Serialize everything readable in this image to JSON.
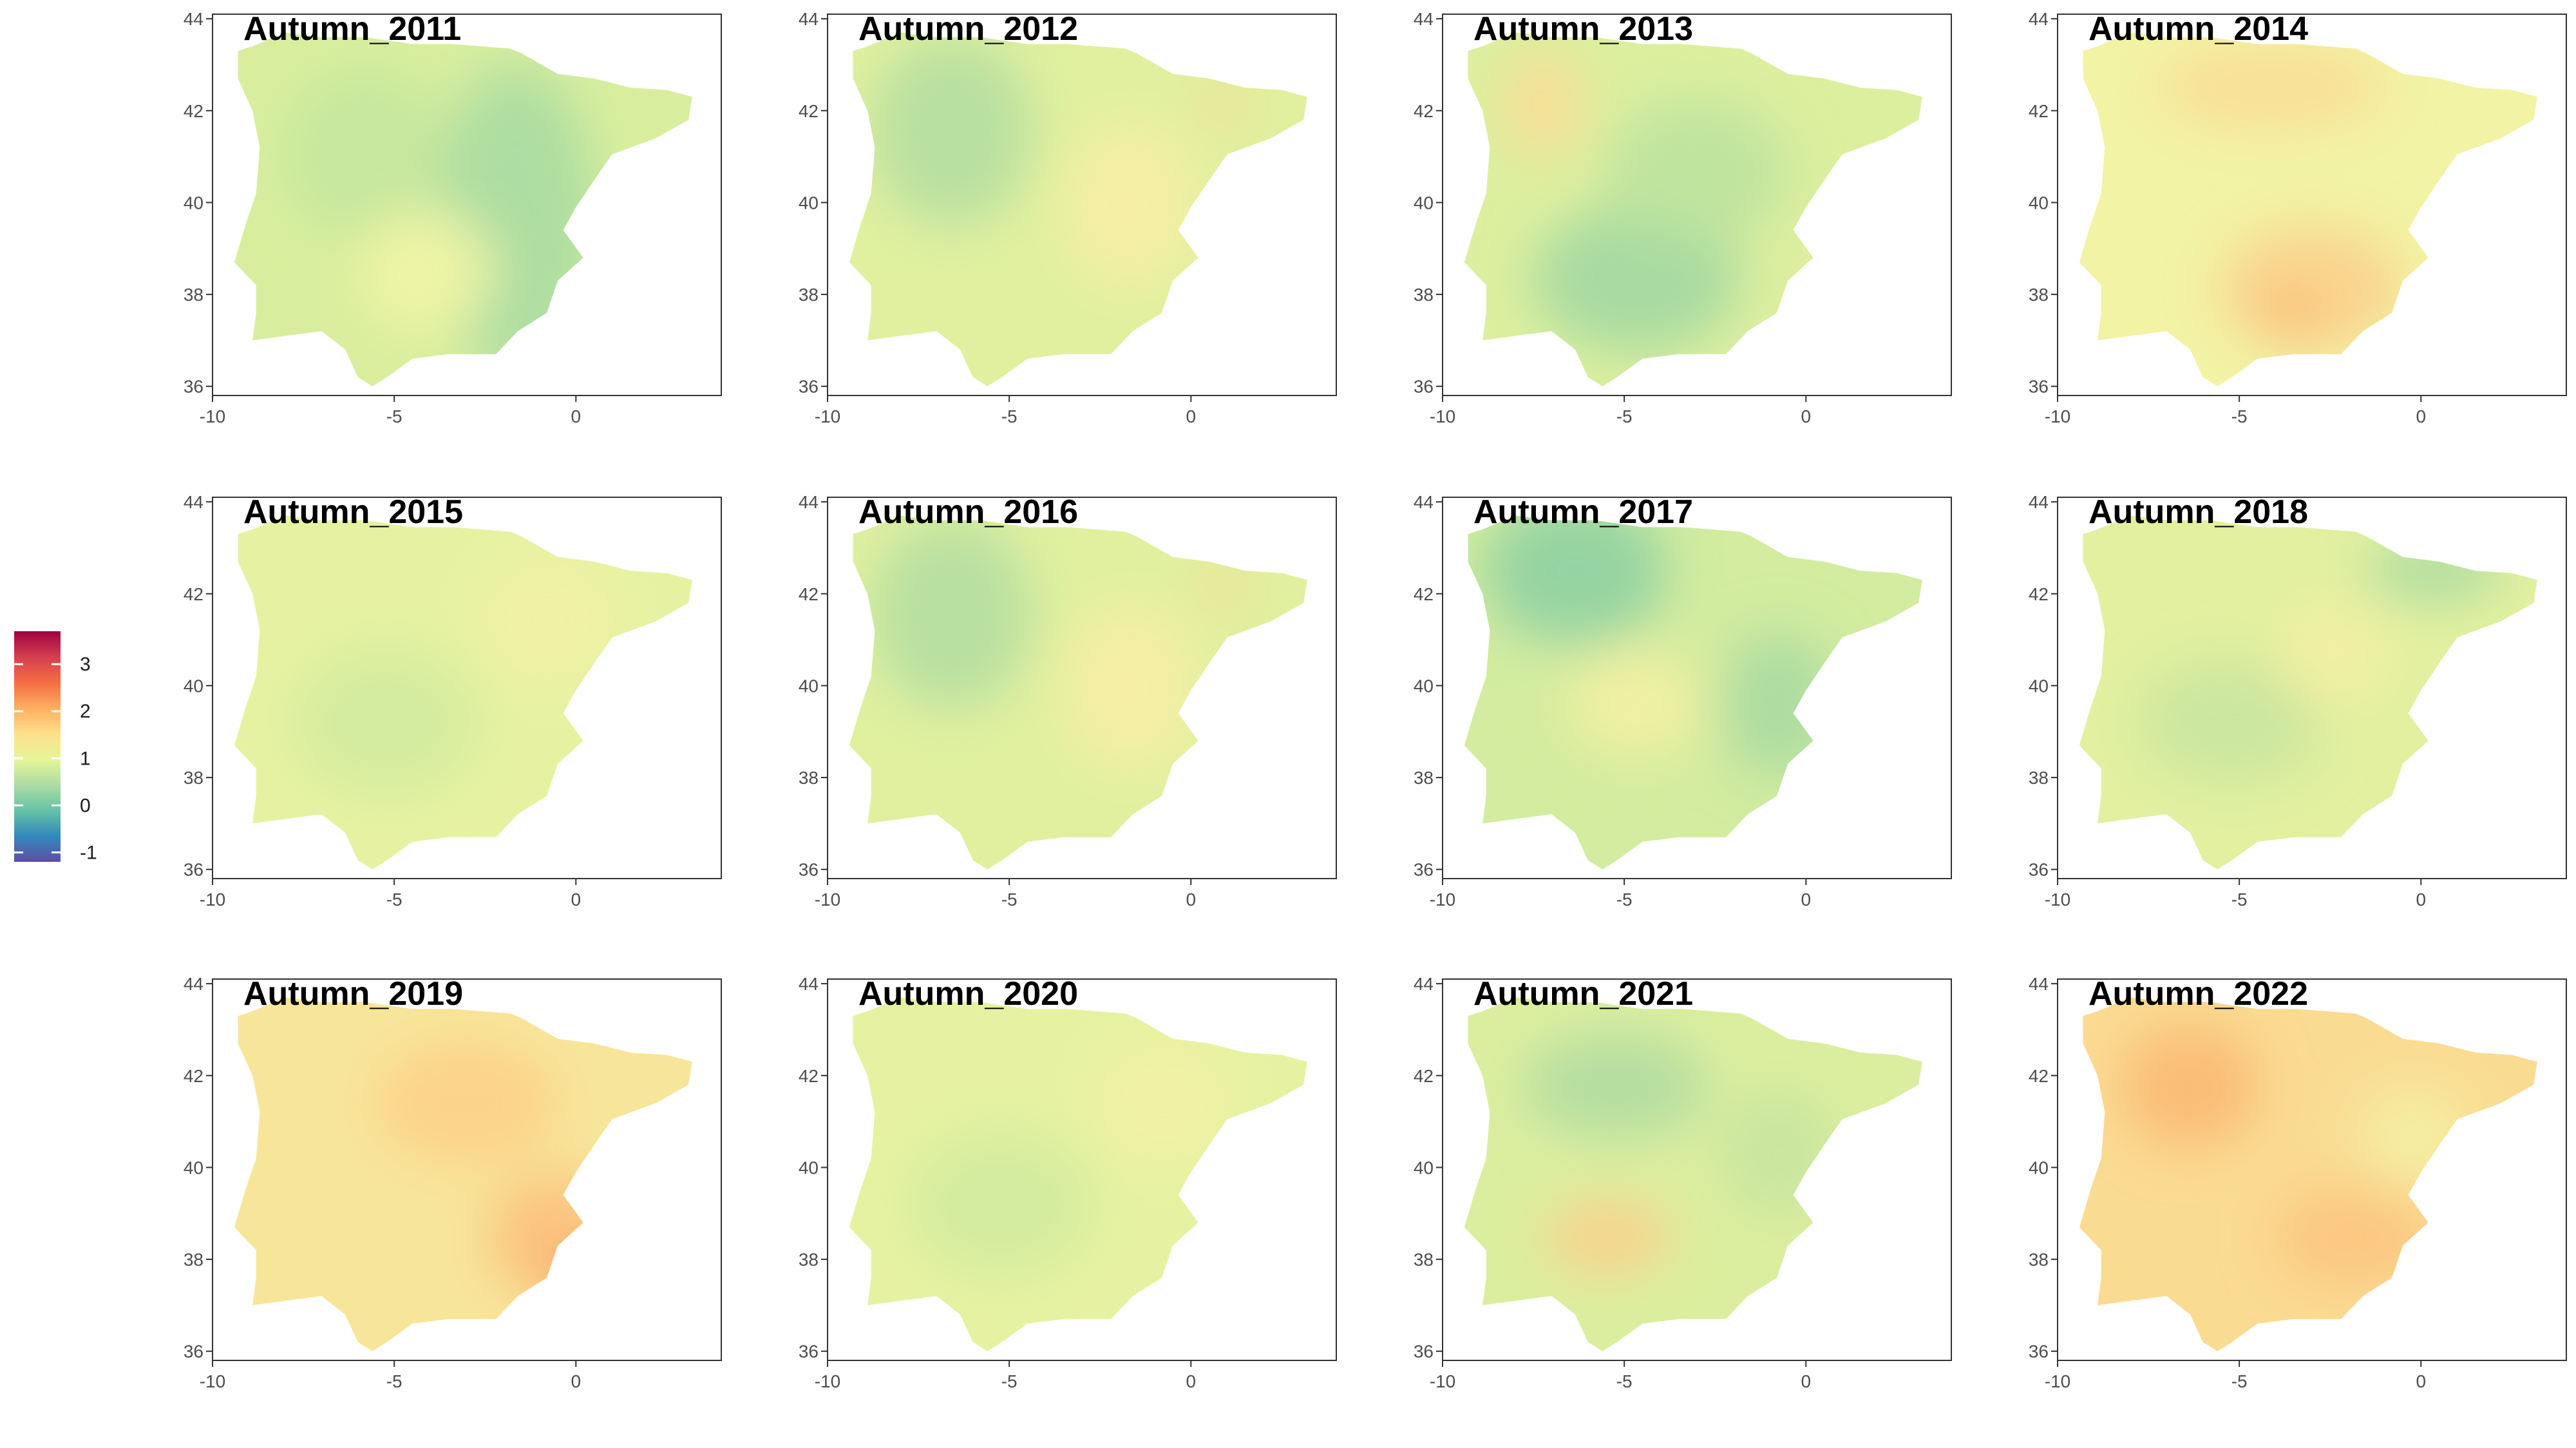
{
  "figure": {
    "panels": [
      {
        "title": "Autumn_2011",
        "pattern": "cool_east"
      },
      {
        "title": "Autumn_2012",
        "pattern": "cool_west"
      },
      {
        "title": "Autumn_2013",
        "pattern": "cool_south"
      },
      {
        "title": "Autumn_2014",
        "pattern": "warm_south"
      },
      {
        "title": "Autumn_2015",
        "pattern": "neutral"
      },
      {
        "title": "Autumn_2016",
        "pattern": "cool_west"
      },
      {
        "title": "Autumn_2017",
        "pattern": "cool_north"
      },
      {
        "title": "Autumn_2018",
        "pattern": "cool_northeast"
      },
      {
        "title": "Autumn_2019",
        "pattern": "hot_southeast"
      },
      {
        "title": "Autumn_2020",
        "pattern": "neutral"
      },
      {
        "title": "Autumn_2021",
        "pattern": "cool_mix"
      },
      {
        "title": "Autumn_2022",
        "pattern": "hot_all"
      }
    ],
    "x_ticks": [
      {
        "value": -10,
        "label": "-10"
      },
      {
        "value": -5,
        "label": "-5"
      },
      {
        "value": 0,
        "label": "0"
      }
    ],
    "y_ticks": [
      {
        "value": 36,
        "label": "36"
      },
      {
        "value": 38,
        "label": "38"
      },
      {
        "value": 40,
        "label": "40"
      },
      {
        "value": 42,
        "label": "42"
      },
      {
        "value": 44,
        "label": "44"
      }
    ],
    "xlim": [
      -10,
      4
    ],
    "ylim": [
      35.8,
      44.1
    ],
    "legend": {
      "range": [
        -1.2,
        3.7
      ],
      "ticks": [
        {
          "value": -1,
          "label": "-1"
        },
        {
          "value": 0,
          "label": "0"
        },
        {
          "value": 1,
          "label": "1"
        },
        {
          "value": 2,
          "label": "2"
        },
        {
          "value": 3,
          "label": "3"
        }
      ],
      "colors": [
        "#5e4fa2",
        "#3288bd",
        "#66c2a5",
        "#abdda4",
        "#e6f598",
        "#fee08b",
        "#fdae61",
        "#f46d43",
        "#d53e4f",
        "#9e0142"
      ]
    },
    "iberia_outline_lonlat": [
      [
        -9.3,
        43.3
      ],
      [
        -8.9,
        43.4
      ],
      [
        -8.0,
        43.7
      ],
      [
        -7.0,
        43.6
      ],
      [
        -5.8,
        43.6
      ],
      [
        -4.5,
        43.45
      ],
      [
        -3.4,
        43.45
      ],
      [
        -1.8,
        43.35
      ],
      [
        -1.5,
        43.25
      ],
      [
        -0.5,
        42.8
      ],
      [
        0.5,
        42.7
      ],
      [
        1.5,
        42.5
      ],
      [
        2.5,
        42.45
      ],
      [
        3.2,
        42.3
      ],
      [
        3.1,
        41.8
      ],
      [
        2.2,
        41.4
      ],
      [
        1.0,
        41.05
      ],
      [
        0.6,
        40.6
      ],
      [
        0.0,
        39.9
      ],
      [
        -0.35,
        39.4
      ],
      [
        0.2,
        38.8
      ],
      [
        -0.5,
        38.3
      ],
      [
        -0.8,
        37.6
      ],
      [
        -1.6,
        37.2
      ],
      [
        -2.2,
        36.7
      ],
      [
        -3.5,
        36.7
      ],
      [
        -4.5,
        36.6
      ],
      [
        -5.2,
        36.2
      ],
      [
        -5.6,
        36.0
      ],
      [
        -6.0,
        36.2
      ],
      [
        -6.35,
        36.8
      ],
      [
        -7.0,
        37.2
      ],
      [
        -7.5,
        37.15
      ],
      [
        -8.9,
        37.0
      ],
      [
        -8.8,
        37.6
      ],
      [
        -8.8,
        38.2
      ],
      [
        -9.4,
        38.7
      ],
      [
        -9.1,
        39.5
      ],
      [
        -8.8,
        40.2
      ],
      [
        -8.7,
        41.2
      ],
      [
        -8.9,
        42.0
      ],
      [
        -9.3,
        42.7
      ],
      [
        -9.3,
        43.3
      ]
    ]
  }
}
